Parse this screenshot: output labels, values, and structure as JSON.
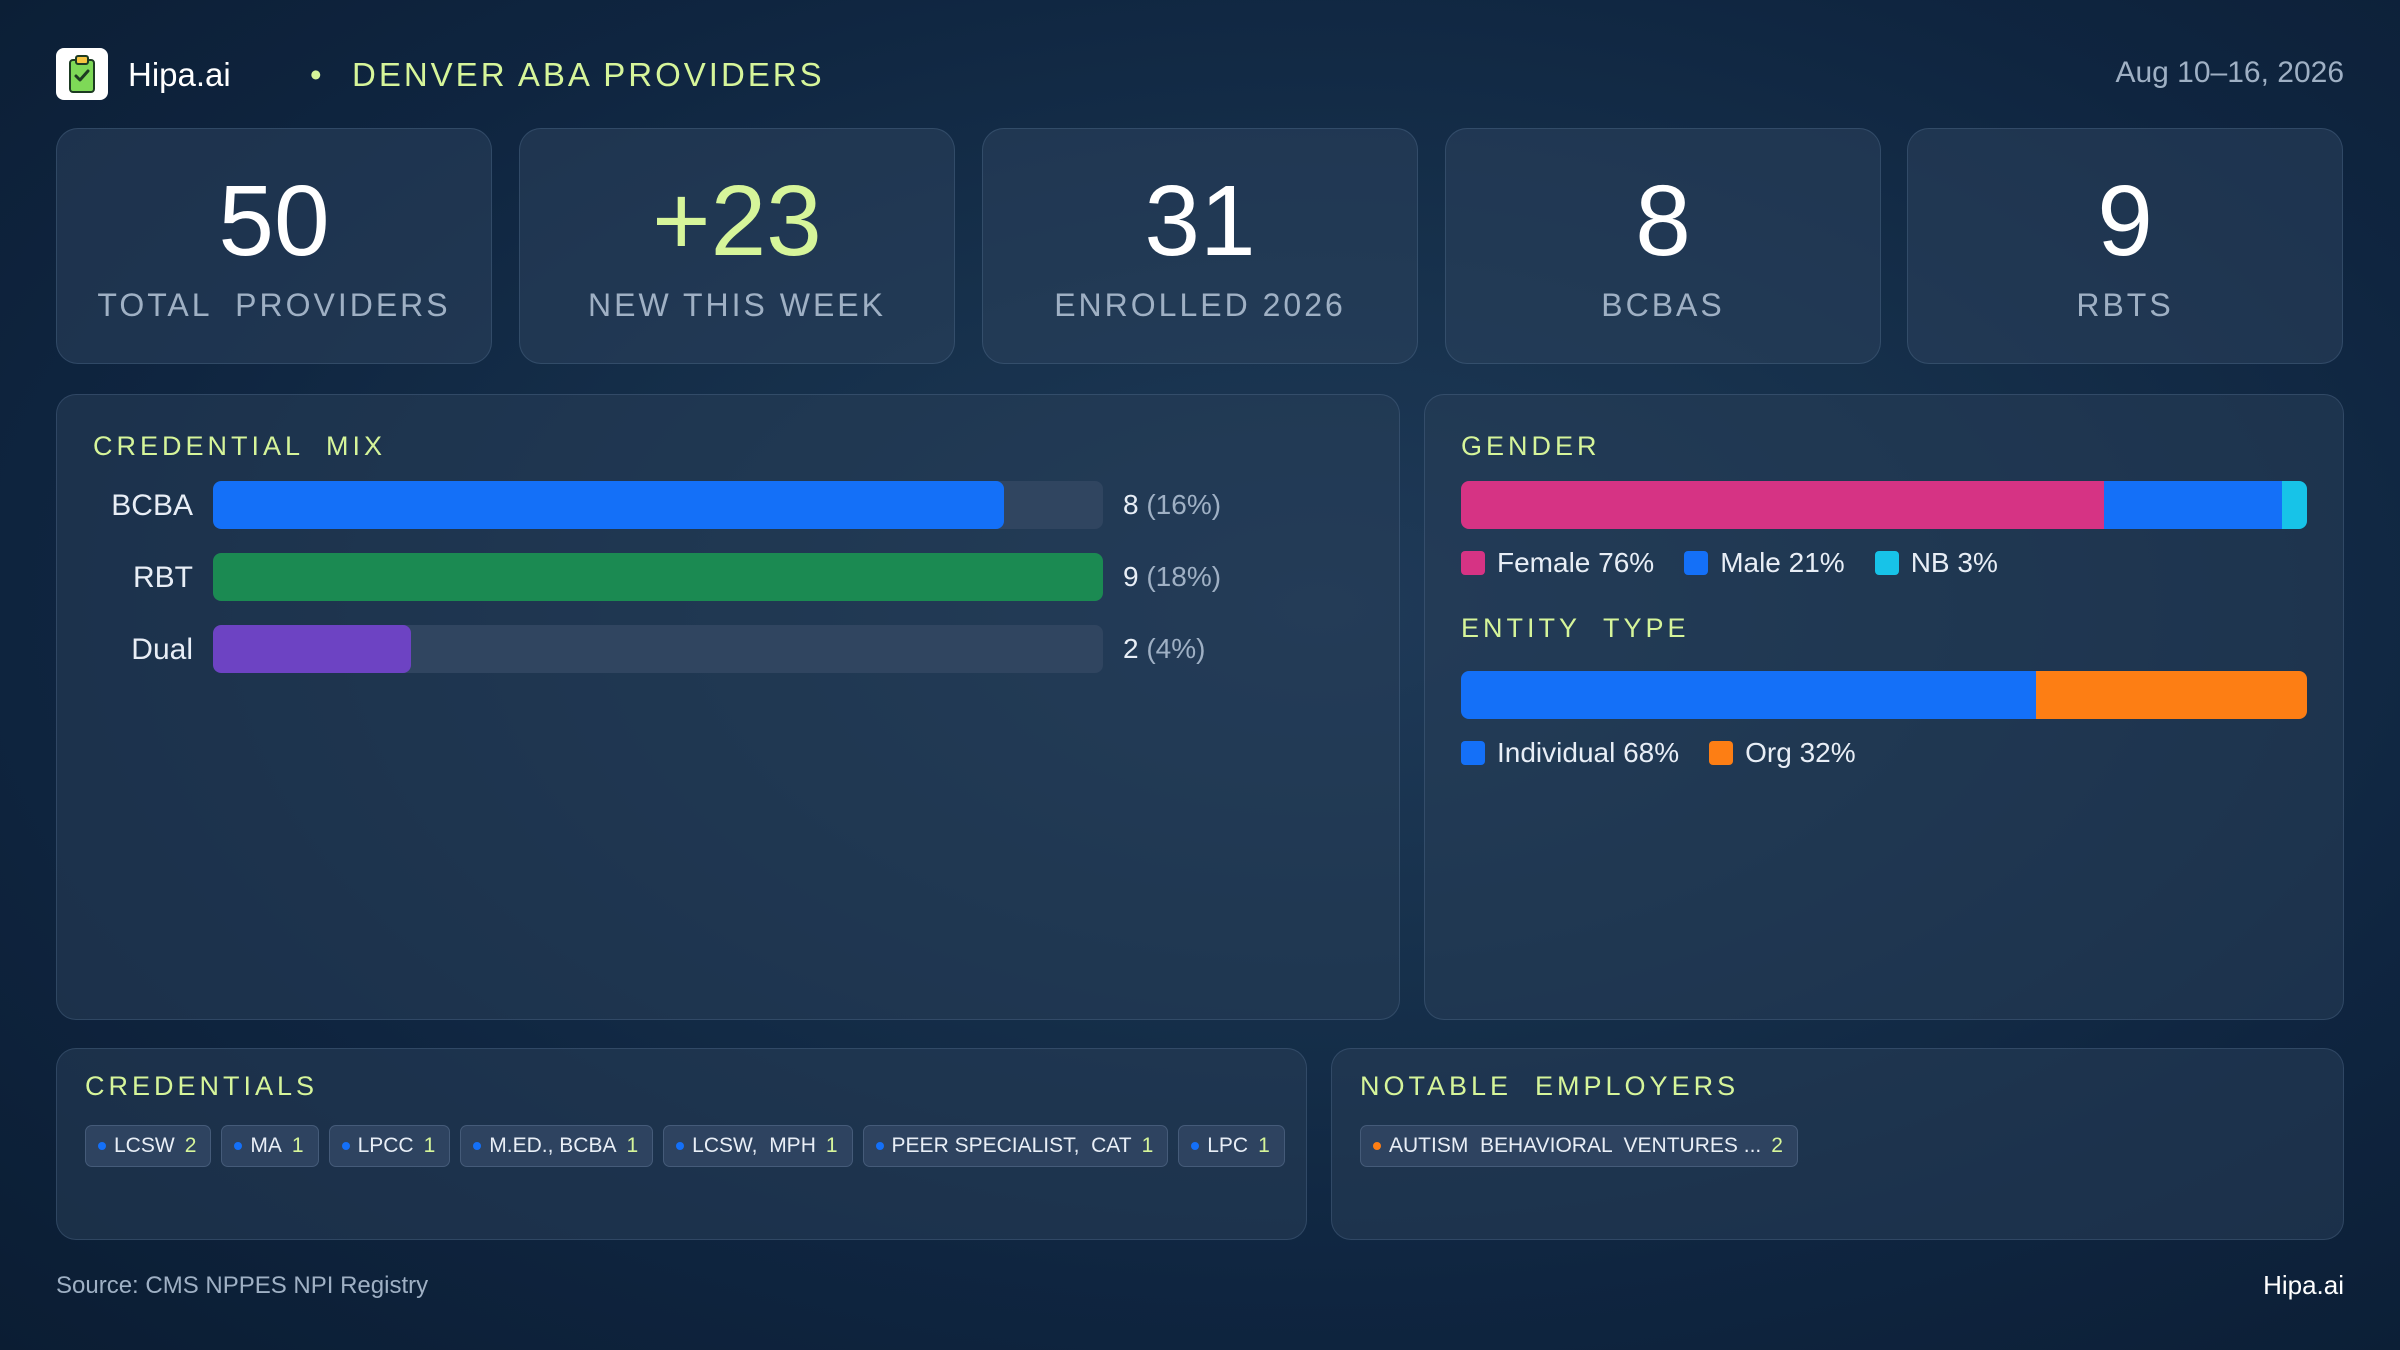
{
  "header": {
    "brand": "Hipa.ai",
    "separator": "•",
    "title": "DENVER ABA PROVIDERS",
    "date_range": "Aug 10–16, 2026",
    "logo_icon": "clipboard-logo-icon"
  },
  "kpis": [
    {
      "value": "50",
      "label": "TOTAL  PROVIDERS",
      "highlight": false
    },
    {
      "value": "+23",
      "label": "NEW THIS WEEK",
      "highlight": true
    },
    {
      "value": "31",
      "label": "ENROLLED 2026",
      "highlight": false
    },
    {
      "value": "8",
      "label": "BCBAS",
      "highlight": false
    },
    {
      "value": "9",
      "label": "RBTS",
      "highlight": false
    }
  ],
  "credential_mix": {
    "title": "CREDENTIAL  MIX",
    "max": 9,
    "items": [
      {
        "label": "BCBA",
        "count": 8,
        "count_text": "8",
        "pct_text": "(16%)",
        "color": "#1470f8"
      },
      {
        "label": "RBT",
        "count": 9,
        "count_text": "9",
        "pct_text": "(18%)",
        "color": "#1b8a52"
      },
      {
        "label": "Dual",
        "count": 2,
        "count_text": "2",
        "pct_text": "(4%)",
        "color": "#6d43c3"
      }
    ]
  },
  "gender": {
    "title": "GENDER",
    "segments": [
      {
        "label": "Female 76%",
        "pct": 76,
        "color": "#d63384"
      },
      {
        "label": "Male 21%",
        "pct": 21,
        "color": "#1470f8"
      },
      {
        "label": "NB 3%",
        "pct": 3,
        "color": "#17c3e8"
      }
    ]
  },
  "entity_type": {
    "title": "ENTITY  TYPE",
    "segments": [
      {
        "label": "Individual 68%",
        "pct": 68,
        "color": "#1470f8"
      },
      {
        "label": "Org 32%",
        "pct": 32,
        "color": "#fd7e14"
      }
    ]
  },
  "credentials": {
    "title": "CREDENTIALS",
    "dot_color": "#1470f8",
    "chips": [
      {
        "label": "LCSW",
        "count": "2"
      },
      {
        "label": "MA",
        "count": "1"
      },
      {
        "label": "LPCC",
        "count": "1"
      },
      {
        "label": "M.ED., BCBA",
        "count": "1"
      },
      {
        "label": "LCSW,  MPH",
        "count": "1"
      },
      {
        "label": "PEER SPECIALIST,  CAT",
        "count": "1"
      },
      {
        "label": "LPC",
        "count": "1"
      }
    ]
  },
  "notable_employers": {
    "title": "NOTABLE  EMPLOYERS",
    "dot_color": "#fd7e14",
    "chips": [
      {
        "label": "AUTISM  BEHAVIORAL  VENTURES ...",
        "count": "2"
      }
    ]
  },
  "footer": {
    "source": "Source: CMS NPPES NPI Registry",
    "brand": "Hipa.ai"
  }
}
